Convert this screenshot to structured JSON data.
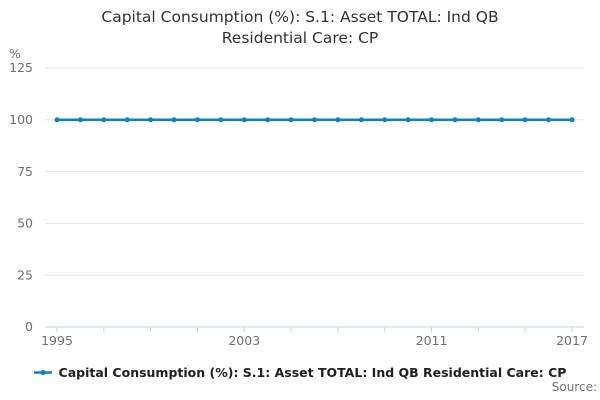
{
  "title": {
    "line1": "Capital Consumption (%): S.1: Asset TOTAL: Ind QB",
    "line2": "Residential Care: CP"
  },
  "legend": {
    "label": "Capital Consumption (%): S.1: Asset TOTAL: Ind QB Residential Care: CP"
  },
  "source": {
    "label": "Source:"
  },
  "colors": {
    "line": "#0f82c5",
    "grid": "#e6e6e6",
    "axis": "#c5d0dc",
    "tick_label": "#6f6f6f",
    "title_text": "#333333",
    "legend_text": "#1f1f1f",
    "source_text": "#707070"
  },
  "chart_data": {
    "type": "line",
    "title": "Capital Consumption (%): S.1: Asset TOTAL: Ind QB Residential Care: CP",
    "xlabel": "",
    "ylabel": "%",
    "x": [
      1995,
      1996,
      1997,
      1998,
      1999,
      2000,
      2001,
      2002,
      2003,
      2004,
      2005,
      2006,
      2007,
      2008,
      2009,
      2010,
      2011,
      2012,
      2013,
      2014,
      2015,
      2016,
      2017
    ],
    "series": [
      {
        "name": "Capital Consumption (%): S.1: Asset TOTAL: Ind QB Residential Care: CP",
        "values": [
          100,
          100,
          100,
          100,
          100,
          100,
          100,
          100,
          100,
          100,
          100,
          100,
          100,
          100,
          100,
          100,
          100,
          100,
          100,
          100,
          100,
          100,
          100
        ]
      }
    ],
    "ylim": [
      0,
      125
    ],
    "yticks": [
      0,
      25,
      50,
      75,
      100,
      125
    ],
    "xticks_labeled": [
      1995,
      2003,
      2011,
      2017
    ],
    "xtick_step_years": 2,
    "grid": true,
    "marker": "circle",
    "legend_position": "bottom"
  }
}
